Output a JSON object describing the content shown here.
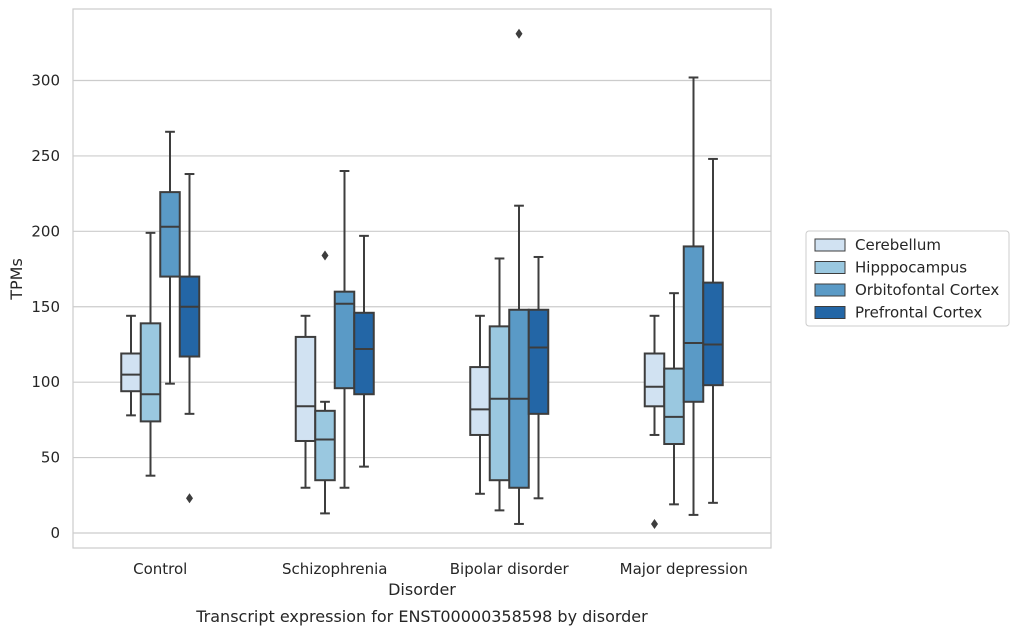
{
  "chart_data": {
    "type": "box",
    "xlabel": "Disorder",
    "ylabel": "TPMs",
    "caption": "Transcript expression for ENST00000358598 by disorder",
    "ylim": [
      -10,
      348
    ],
    "yticks": [
      0,
      50,
      100,
      150,
      200,
      250,
      300
    ],
    "grid": true,
    "legend_position": "right",
    "categories": [
      "Control",
      "Schizophrenia",
      "Bipolar disorder",
      "Major depression"
    ],
    "series": [
      {
        "name": "Cerebellum",
        "color": "#d1e2f2",
        "boxes": [
          {
            "whislo": 78,
            "q1": 94,
            "med": 105,
            "q3": 119,
            "whishi": 144,
            "fliers": []
          },
          {
            "whislo": 30,
            "q1": 61,
            "med": 84,
            "q3": 130,
            "whishi": 144,
            "fliers": []
          },
          {
            "whislo": 26,
            "q1": 65,
            "med": 82,
            "q3": 110,
            "whishi": 144,
            "fliers": []
          },
          {
            "whislo": 65,
            "q1": 84,
            "med": 97,
            "q3": 119,
            "whishi": 144,
            "fliers": [
              6
            ]
          }
        ]
      },
      {
        "name": "Hipppocampus",
        "color": "#9ac8e0",
        "boxes": [
          {
            "whislo": 38,
            "q1": 74,
            "med": 92,
            "q3": 139,
            "whishi": 199,
            "fliers": []
          },
          {
            "whislo": 13,
            "q1": 35,
            "med": 62,
            "q3": 81,
            "whishi": 87,
            "fliers": [
              184
            ]
          },
          {
            "whislo": 15,
            "q1": 35,
            "med": 89,
            "q3": 137,
            "whishi": 182,
            "fliers": []
          },
          {
            "whislo": 19,
            "q1": 59,
            "med": 77,
            "q3": 109,
            "whishi": 159,
            "fliers": []
          }
        ]
      },
      {
        "name": "Orbitofontal Cortex",
        "color": "#5a9ac6",
        "boxes": [
          {
            "whislo": 99,
            "q1": 170,
            "med": 203,
            "q3": 226,
            "whishi": 266,
            "fliers": []
          },
          {
            "whislo": 30,
            "q1": 96,
            "med": 152,
            "q3": 160,
            "whishi": 240,
            "fliers": []
          },
          {
            "whislo": 6,
            "q1": 30,
            "med": 89,
            "q3": 148,
            "whishi": 217,
            "fliers": [
              331
            ]
          },
          {
            "whislo": 12,
            "q1": 87,
            "med": 126,
            "q3": 190,
            "whishi": 302,
            "fliers": []
          }
        ]
      },
      {
        "name": "Prefrontal Cortex",
        "color": "#2366a6",
        "boxes": [
          {
            "whislo": 79,
            "q1": 117,
            "med": 150,
            "q3": 170,
            "whishi": 238,
            "fliers": [
              23
            ]
          },
          {
            "whislo": 44,
            "q1": 92,
            "med": 122,
            "q3": 146,
            "whishi": 197,
            "fliers": []
          },
          {
            "whislo": 23,
            "q1": 79,
            "med": 123,
            "q3": 148,
            "whishi": 183,
            "fliers": []
          },
          {
            "whislo": 20,
            "q1": 98,
            "med": 125,
            "q3": 166,
            "whishi": 248,
            "fliers": []
          }
        ]
      }
    ]
  }
}
